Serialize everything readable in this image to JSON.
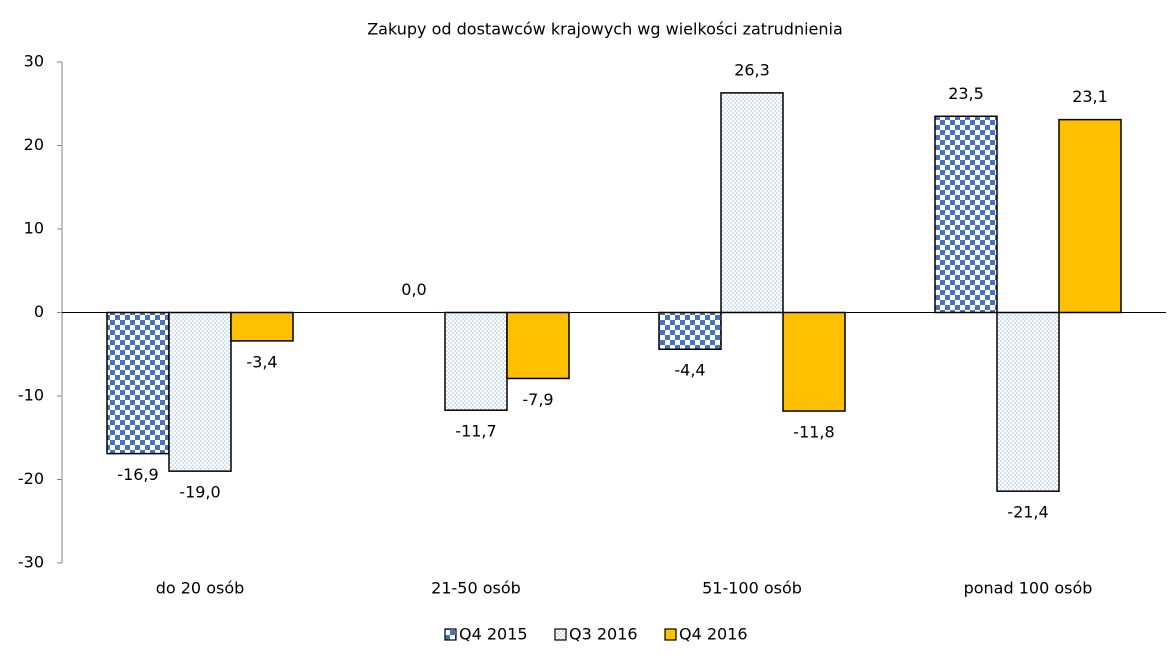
{
  "chart_data": {
    "type": "bar",
    "title": "Zakupy od dostawców krajowych wg wielkości zatrudnienia",
    "categories": [
      "do 20 osób",
      "21-50 osób",
      "51-100 osób",
      "ponad 100 osób"
    ],
    "series": [
      {
        "name": "Q4 2015",
        "color": "#4472c4",
        "pattern": "checker",
        "values": [
          -16.9,
          0.0,
          -4.4,
          23.5
        ],
        "value_labels": [
          "-16,9",
          "0,0",
          "-4,4",
          "23,5"
        ]
      },
      {
        "name": "Q3 2016",
        "color": "#9dc3e6",
        "pattern": "dots",
        "values": [
          -19.0,
          -11.7,
          26.3,
          -21.4
        ],
        "value_labels": [
          "-19,0",
          "-11,7",
          "26,3",
          "-21,4"
        ]
      },
      {
        "name": "Q4 2016",
        "color": "#ffc000",
        "pattern": "solid",
        "values": [
          -3.4,
          -7.9,
          -11.8,
          23.1
        ],
        "value_labels": [
          "-3,4",
          "-7,9",
          "-11,8",
          "23,1"
        ]
      }
    ],
    "ylim": [
      -30,
      30
    ],
    "yticks": [
      -30,
      -20,
      -10,
      0,
      10,
      20,
      30
    ],
    "grid": false,
    "legend": "bottom"
  }
}
